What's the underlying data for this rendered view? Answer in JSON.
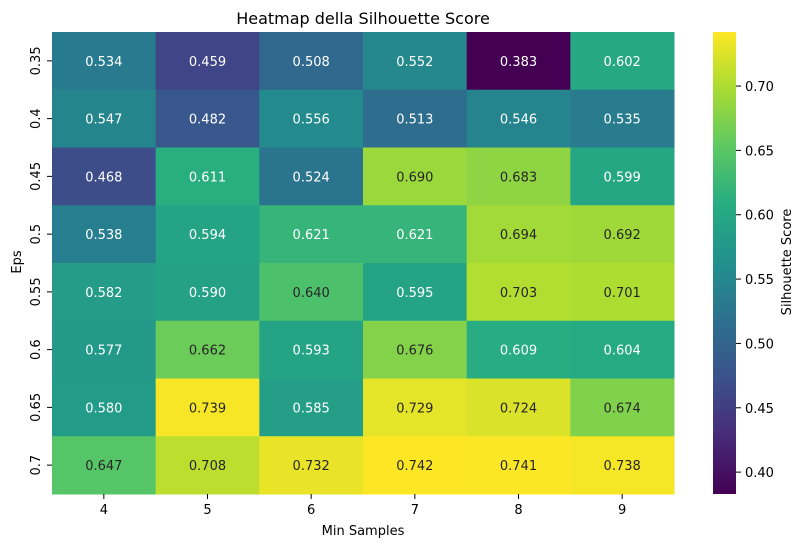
{
  "chart_data": {
    "type": "heatmap",
    "title": "Heatmap della Silhouette Score",
    "xlabel": "Min Samples",
    "ylabel": "Eps",
    "x_categories": [
      "4",
      "5",
      "6",
      "7",
      "8",
      "9"
    ],
    "y_categories": [
      "0.35",
      "0.4",
      "0.45",
      "0.5",
      "0.55",
      "0.6",
      "0.65",
      "0.7"
    ],
    "values": [
      [
        0.534,
        0.459,
        0.508,
        0.552,
        0.383,
        0.602
      ],
      [
        0.547,
        0.482,
        0.556,
        0.513,
        0.546,
        0.535
      ],
      [
        0.468,
        0.611,
        0.524,
        0.69,
        0.683,
        0.599
      ],
      [
        0.538,
        0.594,
        0.621,
        0.621,
        0.694,
        0.692
      ],
      [
        0.582,
        0.59,
        0.64,
        0.595,
        0.703,
        0.701
      ],
      [
        0.577,
        0.662,
        0.593,
        0.676,
        0.609,
        0.604
      ],
      [
        0.58,
        0.739,
        0.585,
        0.729,
        0.724,
        0.674
      ],
      [
        0.647,
        0.708,
        0.732,
        0.742,
        0.741,
        0.738
      ]
    ],
    "annotation_format": "0.000",
    "colormap": "viridis",
    "colorbar": {
      "label": "Silhouette Score",
      "vmin": 0.383,
      "vmax": 0.742,
      "ticks": [
        0.4,
        0.45,
        0.5,
        0.55,
        0.6,
        0.65,
        0.7
      ],
      "tick_labels": [
        "0.40",
        "0.45",
        "0.50",
        "0.55",
        "0.60",
        "0.65",
        "0.70"
      ]
    }
  }
}
